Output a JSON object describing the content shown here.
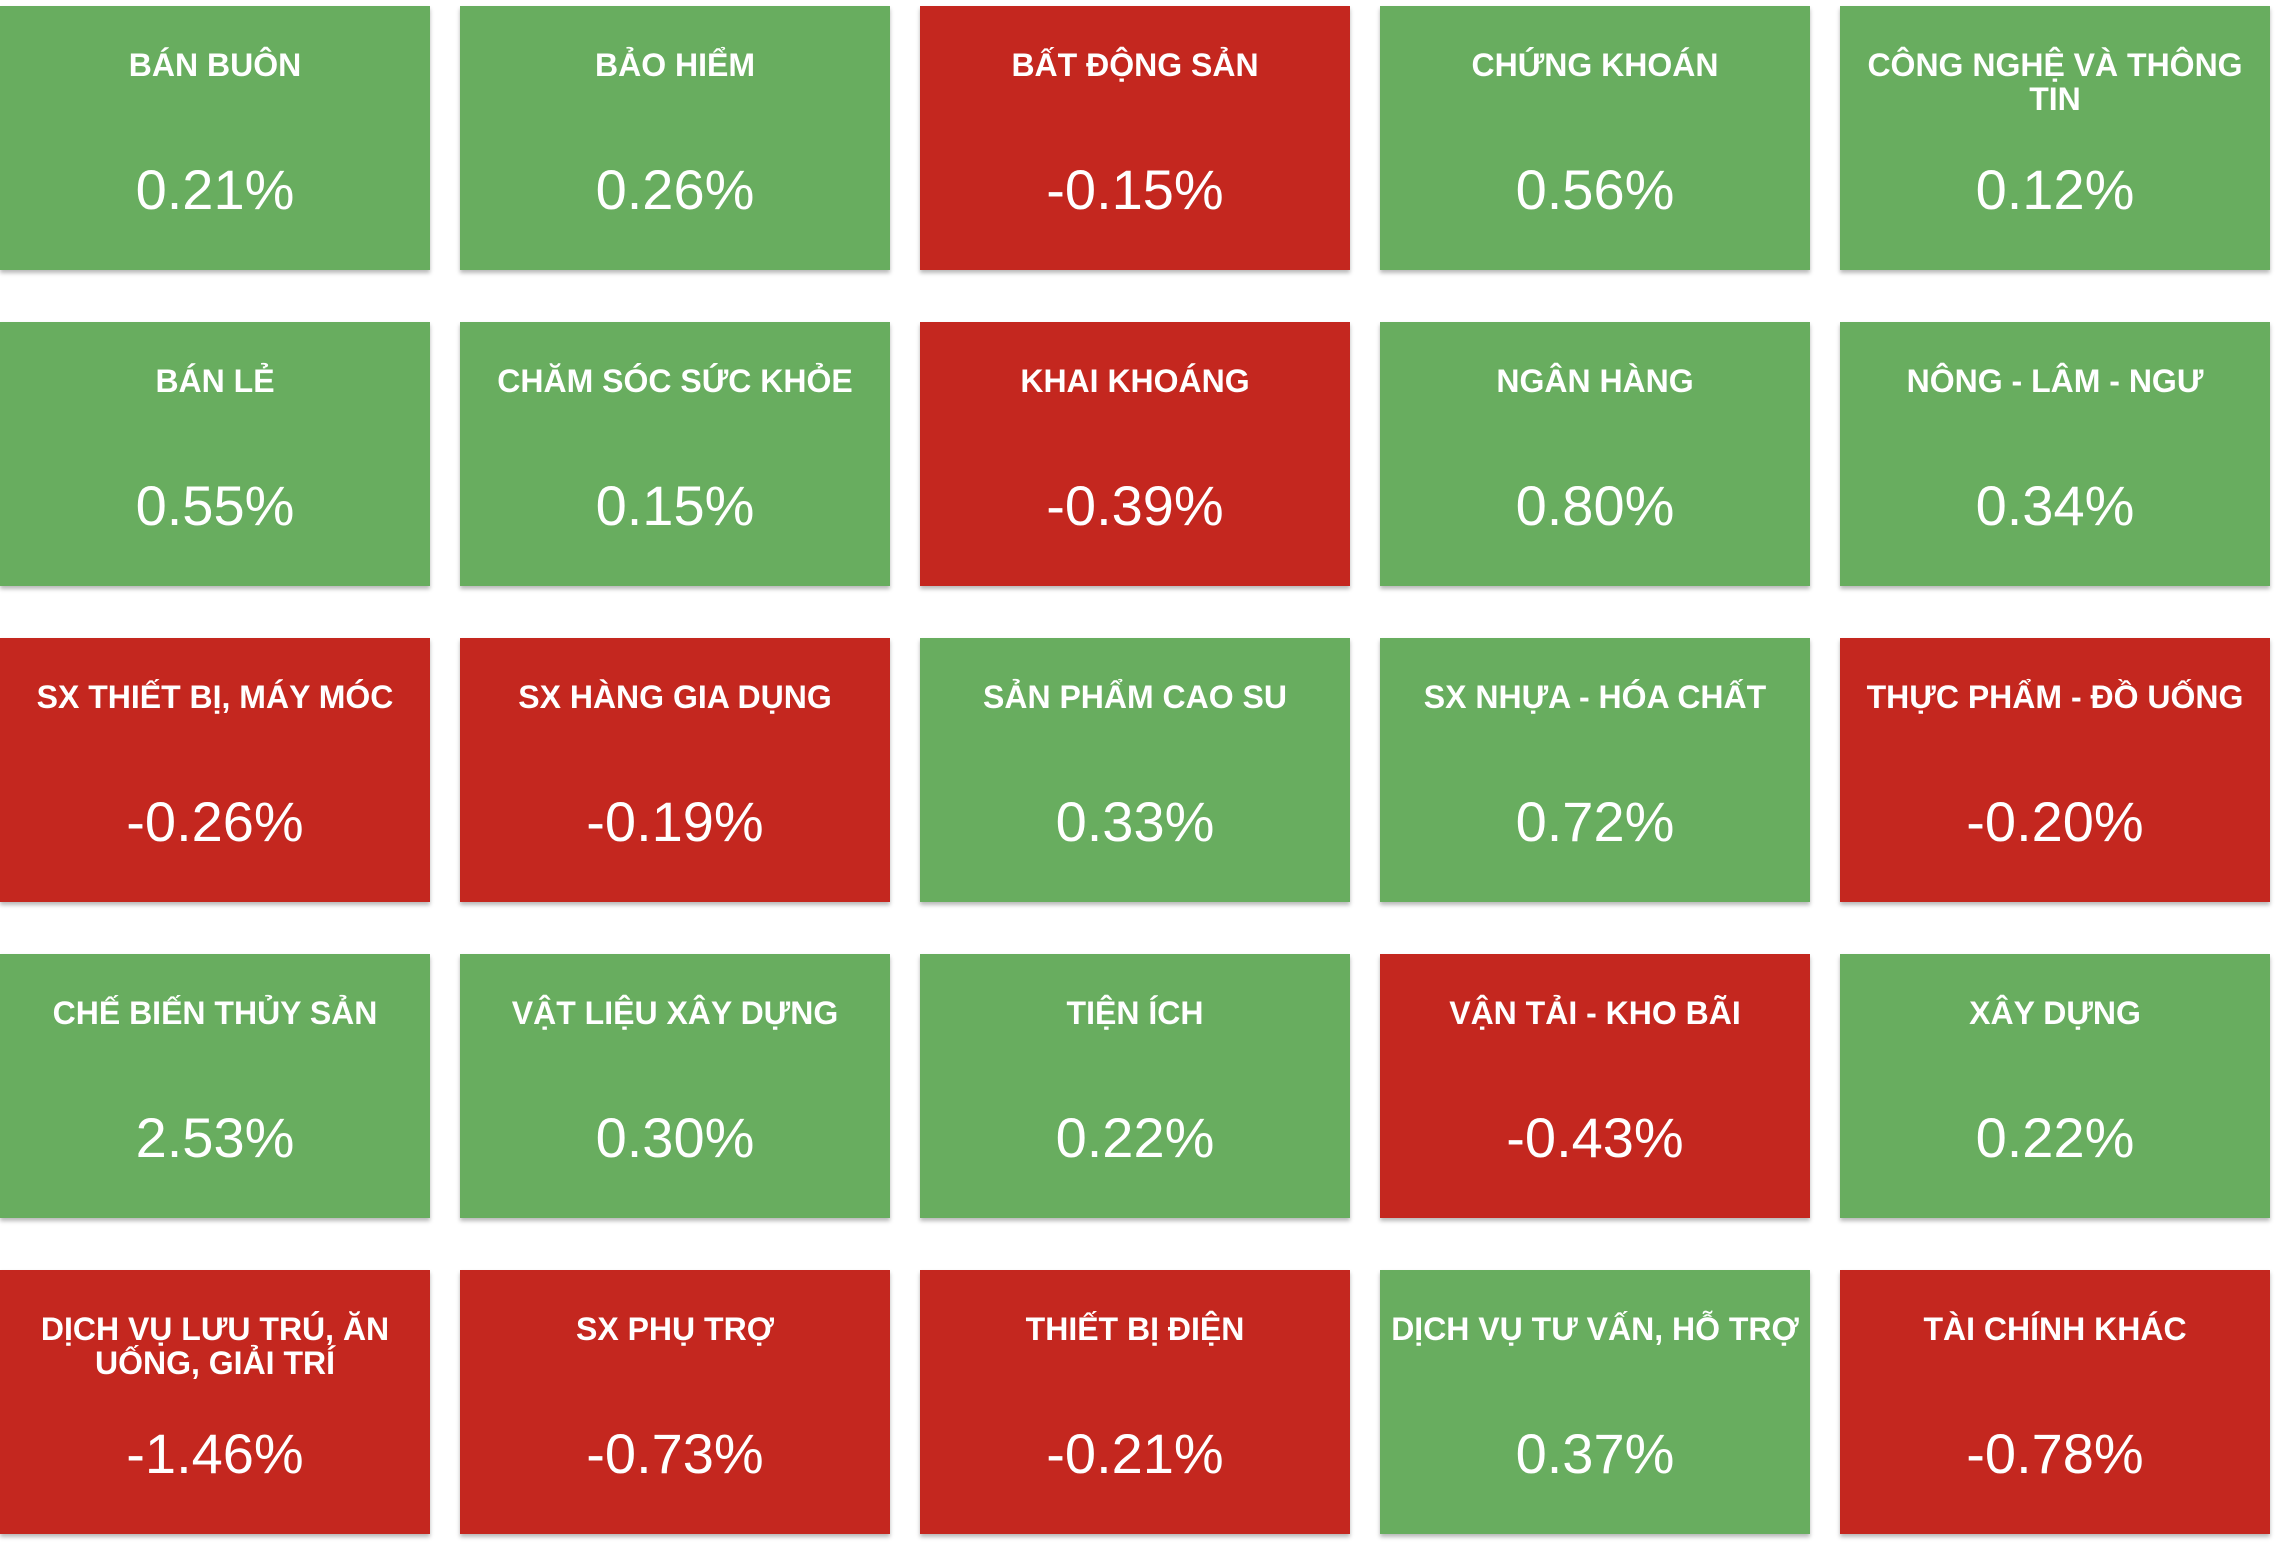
{
  "colors": {
    "up": "#68ad5f",
    "down": "#c4271f",
    "text": "#ffffff"
  },
  "sectors": [
    {
      "name": "BÁN BUÔN",
      "change": "0.21%",
      "direction": "up"
    },
    {
      "name": "BẢO HIỂM",
      "change": "0.26%",
      "direction": "up"
    },
    {
      "name": "BẤT ĐỘNG SẢN",
      "change": "-0.15%",
      "direction": "down"
    },
    {
      "name": "CHỨNG KHOÁN",
      "change": "0.56%",
      "direction": "up"
    },
    {
      "name": "CÔNG NGHỆ VÀ THÔNG TIN",
      "change": "0.12%",
      "direction": "up"
    },
    {
      "name": "BÁN LẺ",
      "change": "0.55%",
      "direction": "up"
    },
    {
      "name": "CHĂM SÓC SỨC KHỎE",
      "change": "0.15%",
      "direction": "up"
    },
    {
      "name": "KHAI KHOÁNG",
      "change": "-0.39%",
      "direction": "down"
    },
    {
      "name": "NGÂN HÀNG",
      "change": "0.80%",
      "direction": "up"
    },
    {
      "name": "NÔNG - LÂM - NGƯ",
      "change": "0.34%",
      "direction": "up"
    },
    {
      "name": "SX THIẾT BỊ, MÁY MÓC",
      "change": "-0.26%",
      "direction": "down"
    },
    {
      "name": "SX HÀNG GIA DỤNG",
      "change": "-0.19%",
      "direction": "down"
    },
    {
      "name": "SẢN PHẨM CAO SU",
      "change": "0.33%",
      "direction": "up"
    },
    {
      "name": "SX NHỰA - HÓA CHẤT",
      "change": "0.72%",
      "direction": "up"
    },
    {
      "name": "THỰC PHẨM - ĐỒ UỐNG",
      "change": "-0.20%",
      "direction": "down"
    },
    {
      "name": "CHẾ BIẾN THỦY SẢN",
      "change": "2.53%",
      "direction": "up"
    },
    {
      "name": "VẬT LIỆU XÂY DỰNG",
      "change": "0.30%",
      "direction": "up"
    },
    {
      "name": "TIỆN ÍCH",
      "change": "0.22%",
      "direction": "up"
    },
    {
      "name": "VẬN TẢI - KHO BÃI",
      "change": "-0.43%",
      "direction": "down"
    },
    {
      "name": "XÂY DỰNG",
      "change": "0.22%",
      "direction": "up"
    },
    {
      "name": "DỊCH VỤ LƯU TRÚ, ĂN UỐNG, GIẢI TRÍ",
      "change": "-1.46%",
      "direction": "down"
    },
    {
      "name": "SX PHỤ TRỢ",
      "change": "-0.73%",
      "direction": "down"
    },
    {
      "name": "THIẾT BỊ ĐIỆN",
      "change": "-0.21%",
      "direction": "down"
    },
    {
      "name": "DỊCH VỤ TƯ VẤN, HỖ TRỢ",
      "change": "0.37%",
      "direction": "up"
    },
    {
      "name": "TÀI CHÍNH KHÁC",
      "change": "-0.78%",
      "direction": "down"
    }
  ]
}
